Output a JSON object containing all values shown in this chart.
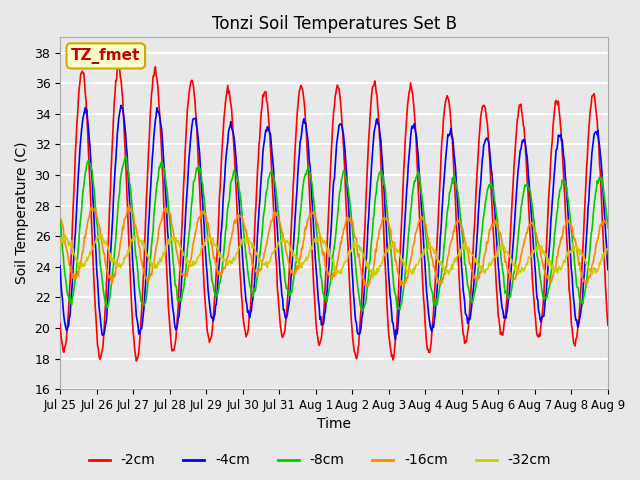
{
  "title": "Tonzi Soil Temperatures Set B",
  "xlabel": "Time",
  "ylabel": "Soil Temperature (C)",
  "ylim": [
    16,
    39
  ],
  "yticks": [
    16,
    18,
    20,
    22,
    24,
    26,
    28,
    30,
    32,
    34,
    36,
    38
  ],
  "x_tick_labels": [
    "Jul 25",
    "Jul 26",
    "Jul 27",
    "Jul 28",
    "Jul 29",
    "Jul 30",
    "Jul 31",
    "Aug 1",
    "Aug 2",
    "Aug 3",
    "Aug 4",
    "Aug 5",
    "Aug 6",
    "Aug 7",
    "Aug 8",
    "Aug 9"
  ],
  "n_days": 15,
  "pts_per_day": 48,
  "series": {
    "-2cm": {
      "color": "#ff0000",
      "phase_shift": 0.0,
      "mean": 27.5,
      "amp": 9.0
    },
    "-4cm": {
      "color": "#0000ff",
      "phase_shift": 0.08,
      "mean": 27.0,
      "amp": 7.0
    },
    "-8cm": {
      "color": "#00cc00",
      "phase_shift": 0.18,
      "mean": 26.2,
      "amp": 4.5
    },
    "-16cm": {
      "color": "#ff8800",
      "phase_shift": 0.3,
      "mean": 25.5,
      "amp": 2.2
    },
    "-32cm": {
      "color": "#cccc00",
      "phase_shift": 0.5,
      "mean": 25.0,
      "amp": 0.9
    }
  },
  "annotation_text": "TZ_fmet",
  "annotation_color": "#cc0000",
  "annotation_bg": "#ffffcc",
  "annotation_border": "#ccaa00",
  "background_color": "#e8e8e8",
  "plot_bg_color": "#e8e8e8",
  "grid_color": "#ffffff",
  "figsize": [
    6.4,
    4.8
  ],
  "dpi": 100
}
